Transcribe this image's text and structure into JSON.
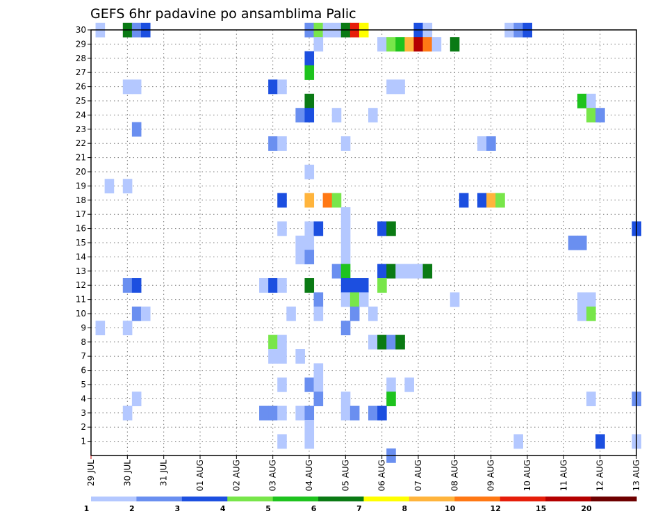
{
  "chart_data": {
    "type": "heatmap",
    "title": "GEFS 6hr padavine po ansamblima Palic",
    "xlabel": "",
    "ylabel": "",
    "x_ticks": [
      "29 JUL",
      "30 JUL",
      "31 JUL",
      "01 AUG",
      "02 AUG",
      "03 AUG",
      "04 AUG",
      "05 AUG",
      "06 AUG",
      "07 AUG",
      "08 AUG",
      "09 AUG",
      "10 AUG",
      "11 AUG",
      "12 AUG",
      "13 AUG"
    ],
    "y_ticks": [
      1,
      2,
      3,
      4,
      5,
      6,
      7,
      8,
      9,
      10,
      11,
      12,
      13,
      14,
      15,
      16,
      17,
      18,
      19,
      20,
      21,
      22,
      23,
      24,
      25,
      26,
      27,
      28,
      29,
      30
    ],
    "x_range": [
      0,
      15
    ],
    "y_range": [
      0,
      30
    ],
    "grid": true,
    "legend_position": "bottom",
    "legend": {
      "labels": [
        "1",
        "2",
        "3",
        "4",
        "5",
        "6",
        "7",
        "8",
        "10",
        "12",
        "15",
        "20"
      ],
      "colors": [
        "#b4c8ff",
        "#6a8ff0",
        "#1c4fe0",
        "#78e64a",
        "#1ec31e",
        "#0a7a14",
        "#ffff00",
        "#ffb43c",
        "#ff7814",
        "#e61e0a",
        "#b40000",
        "#6e0000"
      ]
    },
    "cells": [
      [
        0.25,
        30,
        1
      ],
      [
        1,
        30,
        6
      ],
      [
        1.25,
        30,
        2
      ],
      [
        1.5,
        30,
        3
      ],
      [
        6,
        30,
        2
      ],
      [
        6.25,
        30,
        4
      ],
      [
        6.5,
        30,
        1
      ],
      [
        6.75,
        30,
        1
      ],
      [
        7,
        30,
        6
      ],
      [
        7.25,
        30,
        10
      ],
      [
        7.5,
        30,
        7
      ],
      [
        9,
        30,
        3
      ],
      [
        9.25,
        30,
        1
      ],
      [
        11.5,
        30,
        1
      ],
      [
        11.75,
        30,
        2
      ],
      [
        12,
        30,
        3
      ],
      [
        6.25,
        29,
        1
      ],
      [
        8,
        29,
        1
      ],
      [
        8.25,
        29,
        4
      ],
      [
        8.5,
        29,
        5
      ],
      [
        8.75,
        29,
        8
      ],
      [
        9,
        29,
        11
      ],
      [
        9.25,
        29,
        9
      ],
      [
        9.5,
        29,
        1
      ],
      [
        10,
        29,
        6
      ],
      [
        6,
        28,
        3
      ],
      [
        6,
        27,
        5
      ],
      [
        1,
        26,
        1
      ],
      [
        1.25,
        26,
        1
      ],
      [
        5,
        26,
        3
      ],
      [
        5.25,
        26,
        1
      ],
      [
        8.25,
        26,
        1
      ],
      [
        8.5,
        26,
        1
      ],
      [
        6,
        25,
        6
      ],
      [
        13.5,
        25,
        5
      ],
      [
        13.75,
        25,
        1
      ],
      [
        5.75,
        24,
        2
      ],
      [
        6,
        24,
        3
      ],
      [
        6.75,
        24,
        1
      ],
      [
        7.75,
        24,
        1
      ],
      [
        13.75,
        24,
        4
      ],
      [
        14,
        24,
        2
      ],
      [
        1.25,
        23,
        2
      ],
      [
        5,
        22,
        2
      ],
      [
        5.25,
        22,
        1
      ],
      [
        7,
        22,
        1
      ],
      [
        10.75,
        22,
        1
      ],
      [
        11,
        22,
        2
      ],
      [
        6,
        20,
        1
      ],
      [
        0.5,
        19,
        1
      ],
      [
        1,
        19,
        1
      ],
      [
        5.25,
        18,
        3
      ],
      [
        6,
        18,
        8
      ],
      [
        6.5,
        18,
        9
      ],
      [
        6.75,
        18,
        4
      ],
      [
        10.25,
        18,
        3
      ],
      [
        10.75,
        18,
        3
      ],
      [
        11,
        18,
        8
      ],
      [
        11.25,
        18,
        4
      ],
      [
        7,
        17,
        1
      ],
      [
        5.25,
        16,
        1
      ],
      [
        6,
        16,
        1
      ],
      [
        6.25,
        16,
        3
      ],
      [
        7,
        16,
        1
      ],
      [
        8,
        16,
        3
      ],
      [
        8.25,
        16,
        6
      ],
      [
        15,
        16,
        3
      ],
      [
        5.75,
        15,
        1
      ],
      [
        6,
        15,
        1
      ],
      [
        7,
        15,
        1
      ],
      [
        13.25,
        15,
        2
      ],
      [
        13.5,
        15,
        2
      ],
      [
        5.75,
        14,
        1
      ],
      [
        6,
        14,
        2
      ],
      [
        7,
        14,
        1
      ],
      [
        6.75,
        13,
        2
      ],
      [
        7,
        13,
        5
      ],
      [
        8,
        13,
        3
      ],
      [
        8.25,
        13,
        6
      ],
      [
        8.5,
        13,
        1
      ],
      [
        8.75,
        13,
        1
      ],
      [
        9,
        13,
        1
      ],
      [
        9.25,
        13,
        6
      ],
      [
        1,
        12,
        2
      ],
      [
        1.25,
        12,
        3
      ],
      [
        4.75,
        12,
        1
      ],
      [
        5,
        12,
        3
      ],
      [
        5.25,
        12,
        1
      ],
      [
        6,
        12,
        6
      ],
      [
        7,
        12,
        3
      ],
      [
        7.25,
        12,
        3
      ],
      [
        7.5,
        12,
        3
      ],
      [
        8,
        12,
        4
      ],
      [
        6.25,
        11,
        2
      ],
      [
        7,
        11,
        1
      ],
      [
        7.25,
        11,
        4
      ],
      [
        7.5,
        11,
        1
      ],
      [
        10,
        11,
        1
      ],
      [
        13.5,
        11,
        1
      ],
      [
        13.75,
        11,
        1
      ],
      [
        1.25,
        10,
        2
      ],
      [
        1.5,
        10,
        1
      ],
      [
        5.5,
        10,
        1
      ],
      [
        6.25,
        10,
        1
      ],
      [
        7.25,
        10,
        2
      ],
      [
        7.75,
        10,
        1
      ],
      [
        13.5,
        10,
        1
      ],
      [
        13.75,
        10,
        4
      ],
      [
        0.25,
        9,
        1
      ],
      [
        1,
        9,
        1
      ],
      [
        7,
        9,
        2
      ],
      [
        5,
        8,
        4
      ],
      [
        5.25,
        8,
        1
      ],
      [
        7.75,
        8,
        1
      ],
      [
        8,
        8,
        6
      ],
      [
        8.25,
        8,
        2
      ],
      [
        8.5,
        8,
        6
      ],
      [
        5,
        7,
        1
      ],
      [
        5.25,
        7,
        1
      ],
      [
        5.75,
        7,
        1
      ],
      [
        6.25,
        6,
        1
      ],
      [
        5.25,
        5,
        1
      ],
      [
        6,
        5,
        2
      ],
      [
        6.25,
        5,
        1
      ],
      [
        8.25,
        5,
        1
      ],
      [
        8.75,
        5,
        1
      ],
      [
        1.25,
        4,
        1
      ],
      [
        6.25,
        4,
        2
      ],
      [
        7,
        4,
        1
      ],
      [
        8.25,
        4,
        5
      ],
      [
        13.75,
        4,
        1
      ],
      [
        15,
        4,
        2
      ],
      [
        1,
        3,
        1
      ],
      [
        4.75,
        3,
        2
      ],
      [
        5,
        3,
        2
      ],
      [
        5.25,
        3,
        1
      ],
      [
        5.75,
        3,
        1
      ],
      [
        6,
        3,
        2
      ],
      [
        7,
        3,
        1
      ],
      [
        7.25,
        3,
        2
      ],
      [
        7.75,
        3,
        2
      ],
      [
        8,
        3,
        3
      ],
      [
        6,
        2,
        1
      ],
      [
        5.25,
        1,
        1
      ],
      [
        6,
        1,
        1
      ],
      [
        11.75,
        1,
        1
      ],
      [
        14,
        1,
        3
      ],
      [
        15,
        1,
        1
      ],
      [
        8.25,
        0,
        2
      ]
    ]
  }
}
